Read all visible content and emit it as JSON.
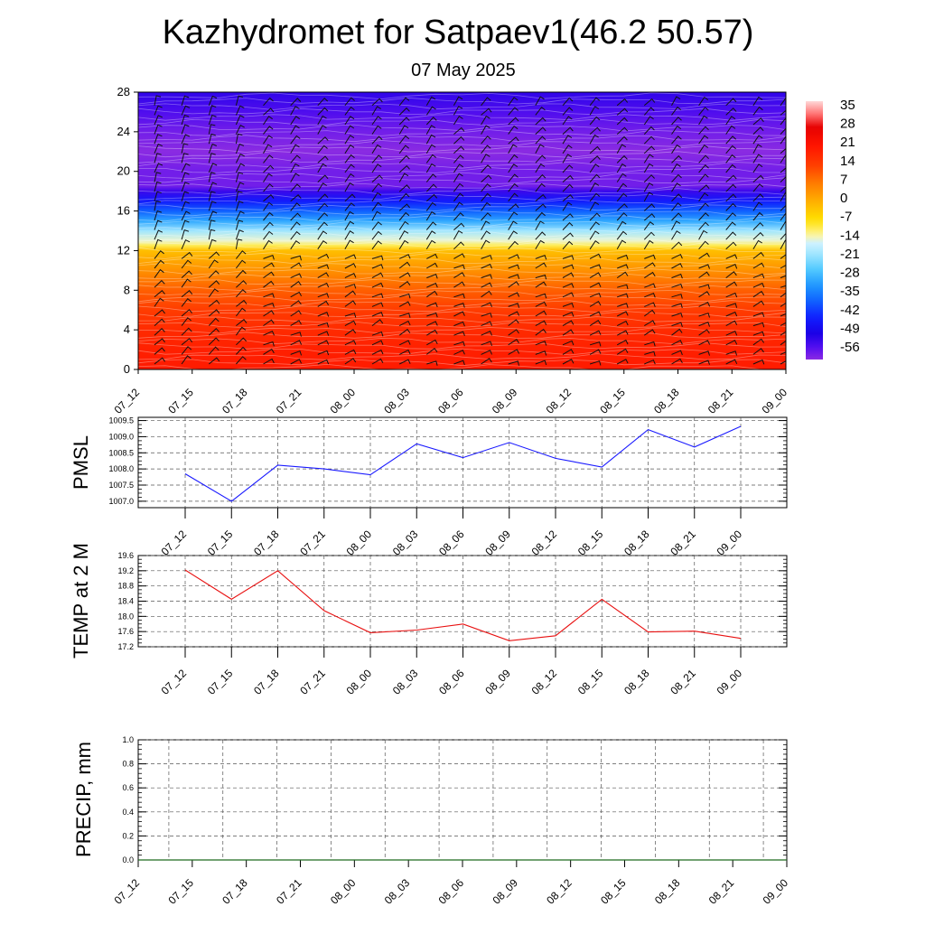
{
  "header": {
    "title": "Kazhydromet for Satpaev1(46.2 50.57)",
    "date": "07 May 2025"
  },
  "colors": {
    "pmsl_line": "#1a1aff",
    "temp_line": "#e81010",
    "precip_line": "#1e6b1e",
    "hot": "#ff1a00",
    "cold": "#1a00e6",
    "neutral": "#fffcb0"
  },
  "chart_data": [
    {
      "type": "heatmap",
      "name": "vertical-profile",
      "x_labels": [
        "07_12",
        "07_15",
        "07_18",
        "07_21",
        "08_00",
        "08_03",
        "08_06",
        "08_09",
        "08_12",
        "08_15",
        "08_18",
        "08_21",
        "09_00"
      ],
      "y_ticks": [
        "0",
        "4",
        "8",
        "12",
        "16",
        "20",
        "24",
        "28"
      ],
      "ylim": [
        0,
        28
      ],
      "colorbar_labels": [
        "35",
        "28",
        "21",
        "14",
        "7",
        "0",
        "-7",
        "-14",
        "-21",
        "-28",
        "-35",
        "-42",
        "-49",
        "-56"
      ],
      "colorbar_range": [
        -60,
        38
      ],
      "temperature_profile": {
        "levels": [
          0,
          2,
          4,
          6,
          8,
          10,
          12,
          12.5,
          13,
          14,
          15,
          16,
          17,
          18,
          18.5,
          20,
          22,
          24,
          26,
          28
        ],
        "values": [
          20,
          19,
          17,
          14,
          10,
          4,
          -2,
          -10,
          -14,
          -20,
          -30,
          -38,
          -45,
          -53,
          -58,
          -58,
          -60,
          -58,
          -55,
          -52
        ]
      },
      "wind_barbs": "present"
    },
    {
      "type": "line",
      "name": "pmsl",
      "ylabel": "PMSL",
      "categories": [
        "07_12",
        "07_15",
        "07_18",
        "07_21",
        "08_00",
        "08_03",
        "08_06",
        "08_09",
        "08_12",
        "08_15",
        "08_18",
        "08_21",
        "09_00"
      ],
      "y_ticks": [
        "1007.0",
        "1007.5",
        "1008.0",
        "1008.5",
        "1009.0",
        "1009.5"
      ],
      "ylim": [
        1006.8,
        1009.6
      ],
      "values": [
        1007.85,
        1007.0,
        1008.12,
        1008.0,
        1007.82,
        1008.78,
        1008.35,
        1008.82,
        1008.33,
        1008.06,
        1009.22,
        1008.68,
        1009.32
      ],
      "grid": true
    },
    {
      "type": "line",
      "name": "temp-2m",
      "ylabel": "TEMP at 2 M",
      "categories": [
        "07_12",
        "07_15",
        "07_18",
        "07_21",
        "08_00",
        "08_03",
        "08_06",
        "08_09",
        "08_12",
        "08_15",
        "08_18",
        "08_21",
        "09_00"
      ],
      "y_ticks": [
        "17.2",
        "17.6",
        "18.0",
        "18.4",
        "18.8",
        "19.2",
        "19.6"
      ],
      "ylim": [
        17.2,
        19.6
      ],
      "values": [
        19.22,
        18.45,
        19.2,
        18.15,
        17.57,
        17.64,
        17.8,
        17.36,
        17.49,
        18.45,
        17.59,
        17.61,
        17.42
      ],
      "grid": true
    },
    {
      "type": "line",
      "name": "precip",
      "ylabel": "PRECIP, mm",
      "categories": [
        "07_12",
        "07_15",
        "07_18",
        "07_21",
        "08_00",
        "08_03",
        "08_06",
        "08_09",
        "08_12",
        "08_15",
        "08_18",
        "08_21",
        "09_00"
      ],
      "y_ticks": [
        "0.0",
        "0.2",
        "0.4",
        "0.6",
        "0.8",
        "1.0"
      ],
      "ylim": [
        0,
        1
      ],
      "values": [
        0,
        0,
        0,
        0,
        0,
        0,
        0,
        0,
        0,
        0,
        0,
        0,
        0
      ],
      "grid": true
    }
  ]
}
